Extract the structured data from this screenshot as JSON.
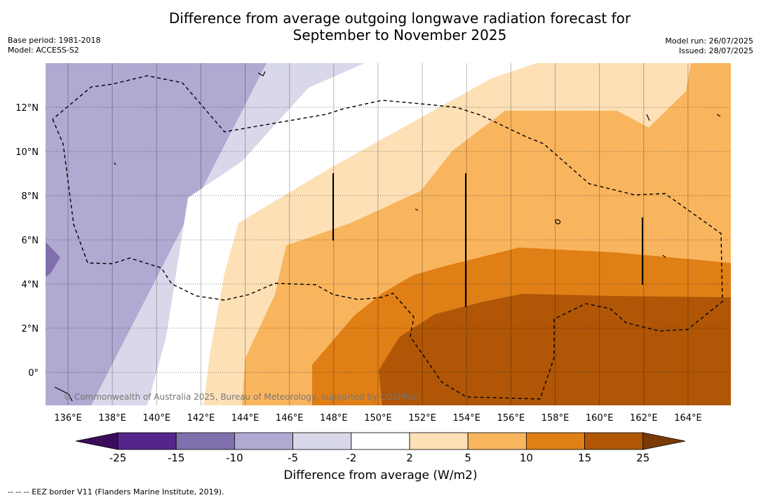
{
  "header": {
    "title_line1": "Difference from average outgoing longwave radiation forecast for",
    "title_line2": "September to November 2025",
    "base_period": "Base period: 1981-2018",
    "model": "Model: ACCESS-S2",
    "model_run": "Model run: 26/07/2025",
    "issued": "Issued: 28/07/2025"
  },
  "map": {
    "lon_labels": [
      "136°E",
      "138°E",
      "140°E",
      "142°E",
      "144°E",
      "146°E",
      "148°E",
      "150°E",
      "152°E",
      "154°E",
      "156°E",
      "158°E",
      "160°E",
      "162°E",
      "164°E"
    ],
    "lat_labels": [
      "12°N",
      "10°N",
      "8°N",
      "6°N",
      "4°N",
      "2°N",
      "0°"
    ],
    "copyright": "© Commonwealth of Australia 2025, Bureau of Meteorology, supported by COSPPac"
  },
  "colorbar": {
    "ticks": [
      "-25",
      "-15",
      "-10",
      "-5",
      "-2",
      "2",
      "5",
      "10",
      "15",
      "25"
    ],
    "colors": [
      "#3a0d5c",
      "#55268a",
      "#7f70ad",
      "#b0a9d2",
      "#d8d8ea",
      "#ffffff",
      "#fde0b6",
      "#f9b55e",
      "#df7f16",
      "#b05606",
      "#7a3a05"
    ],
    "label": "Difference from average (W/m2)"
  },
  "legend": {
    "eez": "--  --  -- EEZ border V11 (Flanders Marine Institute, 2019)."
  }
}
